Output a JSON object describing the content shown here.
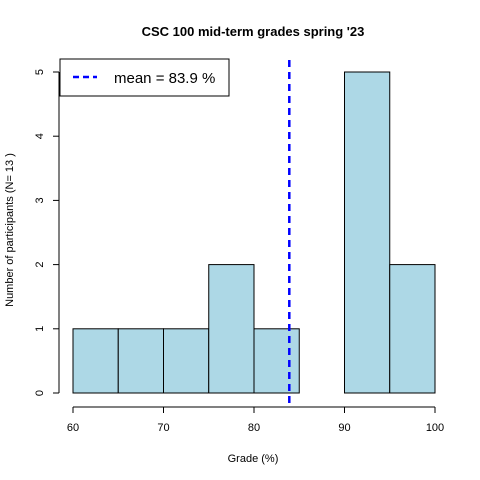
{
  "chart_data": {
    "type": "bar",
    "title": "CSC 100 mid-term grades spring '23",
    "xlabel": "Grade (%)",
    "ylabel": "Number of participants (N= 13 )",
    "xlim": [
      60,
      100
    ],
    "ylim": [
      0,
      5
    ],
    "x_ticks": [
      60,
      70,
      80,
      90,
      100
    ],
    "y_ticks": [
      0,
      1,
      2,
      3,
      4,
      5
    ],
    "bins": [
      {
        "from": 60,
        "to": 65,
        "count": 1
      },
      {
        "from": 65,
        "to": 70,
        "count": 1
      },
      {
        "from": 70,
        "to": 75,
        "count": 1
      },
      {
        "from": 75,
        "to": 80,
        "count": 2
      },
      {
        "from": 80,
        "to": 85,
        "count": 1
      },
      {
        "from": 85,
        "to": 90,
        "count": 0
      },
      {
        "from": 90,
        "to": 95,
        "count": 5
      },
      {
        "from": 95,
        "to": 100,
        "count": 2
      }
    ],
    "bar_color": "#add8e6",
    "mean": 83.9,
    "mean_line_color": "#0000ff",
    "legend": {
      "label": "mean = 83.9 %",
      "position": "top-left"
    },
    "grid": false
  }
}
